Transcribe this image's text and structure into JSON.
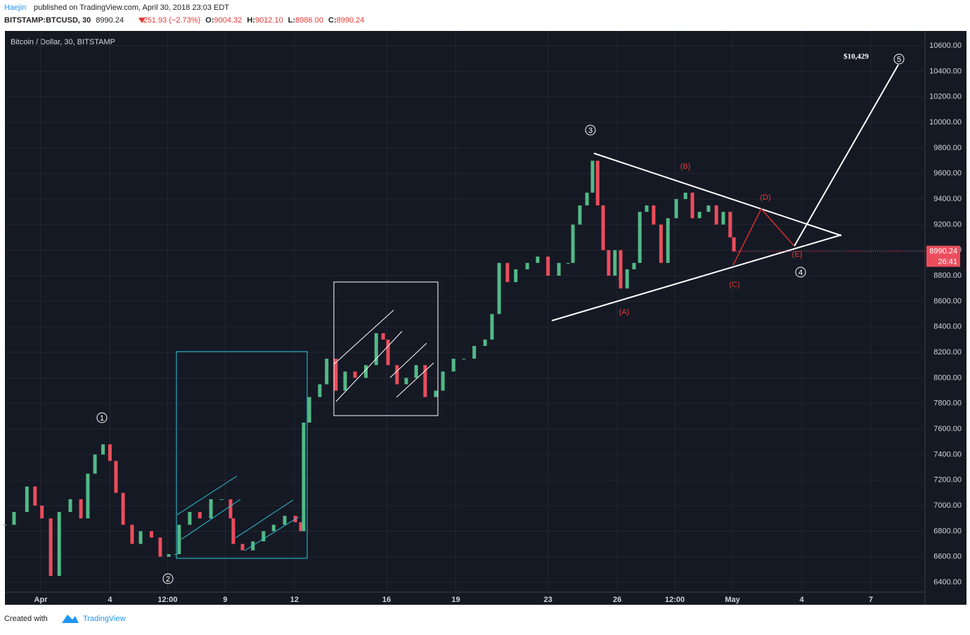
{
  "header": {
    "author": "Haejin",
    "published": "published on TradingView.com, April 30, 2018 23:03 EDT",
    "symbol": "BITSTAMP:BTCUSD, 30",
    "price": "8990.24",
    "change": "−251.93 (−2.73%)",
    "o_label": "O:",
    "o": "9004.32",
    "h_label": "H:",
    "h": "9012.10",
    "l_label": "L:",
    "l": "8986.00",
    "c_label": "C:",
    "c": "8990.24"
  },
  "footer": {
    "created": "Created with",
    "brand": "TradingView"
  },
  "chart_data": {
    "type": "candlestick",
    "title": "Bitcoin / Dollar, 30, BITSTAMP",
    "countdown": "26:41",
    "grid": true,
    "xlim": [
      -1.555,
      38.35
    ],
    "ylim": [
      6323,
      10716
    ],
    "xticks": [
      {
        "value": 0,
        "label": "Apr"
      },
      {
        "value": 3,
        "label": "4"
      },
      {
        "value": 5.5,
        "label": "12:00"
      },
      {
        "value": 8,
        "label": "9"
      },
      {
        "value": 11,
        "label": "12"
      },
      {
        "value": 15,
        "label": "16"
      },
      {
        "value": 18,
        "label": "19"
      },
      {
        "value": 22,
        "label": "23"
      },
      {
        "value": 25,
        "label": "26"
      },
      {
        "value": 27.5,
        "label": "12:00"
      },
      {
        "value": 30,
        "label": "May"
      },
      {
        "value": 33,
        "label": "4"
      },
      {
        "value": 36,
        "label": "7"
      }
    ],
    "yticks": [
      {
        "value": 6400,
        "label": "6400.00"
      },
      {
        "value": 6600,
        "label": "6600.00"
      },
      {
        "value": 6800,
        "label": "6800.00"
      },
      {
        "value": 7000,
        "label": "7000.00"
      },
      {
        "value": 7200,
        "label": "7200.00"
      },
      {
        "value": 7400,
        "label": "7400.00"
      },
      {
        "value": 7600,
        "label": "7600.00"
      },
      {
        "value": 7800,
        "label": "7800.00"
      },
      {
        "value": 8000,
        "label": "8000.00"
      },
      {
        "value": 8200,
        "label": "8200.00"
      },
      {
        "value": 8400,
        "label": "8400.00"
      },
      {
        "value": 8600,
        "label": "8600.00"
      },
      {
        "value": 8800,
        "label": "8800.00"
      },
      {
        "value": 9000,
        "label": "9000.00"
      },
      {
        "value": 9200,
        "label": "9200.00"
      },
      {
        "value": 9400,
        "label": "9400.00"
      },
      {
        "value": 9600,
        "label": "9600.00"
      },
      {
        "value": 9800,
        "label": "9800.00"
      },
      {
        "value": 10000,
        "label": "10000.00"
      },
      {
        "value": 10200,
        "label": "10200.00"
      },
      {
        "value": 10400,
        "label": "10400.00"
      },
      {
        "value": 10600,
        "label": "10600.00"
      }
    ],
    "series": [
      {
        "up_color": "#53b987",
        "down_color": "#eb4d5c",
        "x": [
          -1.55,
          -1.16,
          -0.6,
          -0.25,
          0.05,
          0.43,
          0.8,
          1.28,
          1.74,
          2.04,
          2.35,
          2.7,
          3.0,
          3.26,
          3.57,
          3.96,
          4.33,
          4.8,
          5.18,
          5.55,
          5.85,
          6.0,
          6.46,
          6.9,
          7.38,
          7.84,
          8.23,
          8.35,
          8.75,
          9.2,
          9.66,
          10.1,
          10.58,
          11.04,
          11.28,
          11.4,
          11.65,
          12.1,
          12.4,
          12.8,
          13.2,
          13.63,
          14.1,
          14.55,
          14.85,
          15.06,
          15.45,
          15.85,
          16.28,
          16.67,
          17.13,
          17.44,
          17.9,
          18.35,
          18.8,
          19.27,
          19.57,
          19.88,
          20.24,
          20.6,
          21.1,
          21.55,
          22.0,
          22.47,
          22.87,
          23.08,
          23.38,
          23.69,
          23.93,
          24.15,
          24.39,
          24.63,
          24.9,
          25.15,
          25.43,
          25.73,
          25.98,
          26.28,
          26.58,
          26.9,
          27.2,
          27.56,
          27.96,
          28.26,
          28.57,
          28.96,
          29.3,
          29.6,
          29.9,
          30.06
        ],
        "values": [
          6850,
          6950,
          7150,
          7000,
          6900,
          6450,
          6950,
          7050,
          6900,
          7250,
          7400,
          7480,
          7350,
          7100,
          6850,
          6700,
          6800,
          6750,
          6600,
          6620,
          6620,
          6850,
          6950,
          6900,
          7050,
          7050,
          6900,
          6700,
          6650,
          6720,
          6800,
          6850,
          6920,
          6870,
          6800,
          7650,
          7850,
          7950,
          8150,
          7900,
          8050,
          8000,
          8100,
          8350,
          8300,
          8100,
          7950,
          8000,
          8100,
          7850,
          7900,
          8050,
          8150,
          8150,
          8250,
          8300,
          8500,
          8900,
          8750,
          8850,
          8900,
          8950,
          8800,
          8900,
          8900,
          9200,
          9350,
          9450,
          9700,
          9350,
          9000,
          8800,
          9000,
          8700,
          8850,
          8900,
          9300,
          9350,
          9200,
          8900,
          9250,
          9400,
          9450,
          9250,
          9300,
          9350,
          9200,
          9300,
          9100,
          8990.24
        ]
      }
    ],
    "annotations": [
      "1",
      "2",
      "3",
      "4",
      "5",
      "(A)",
      "(B)",
      "(C)",
      "(D)",
      "(E)",
      "$10,429"
    ]
  }
}
